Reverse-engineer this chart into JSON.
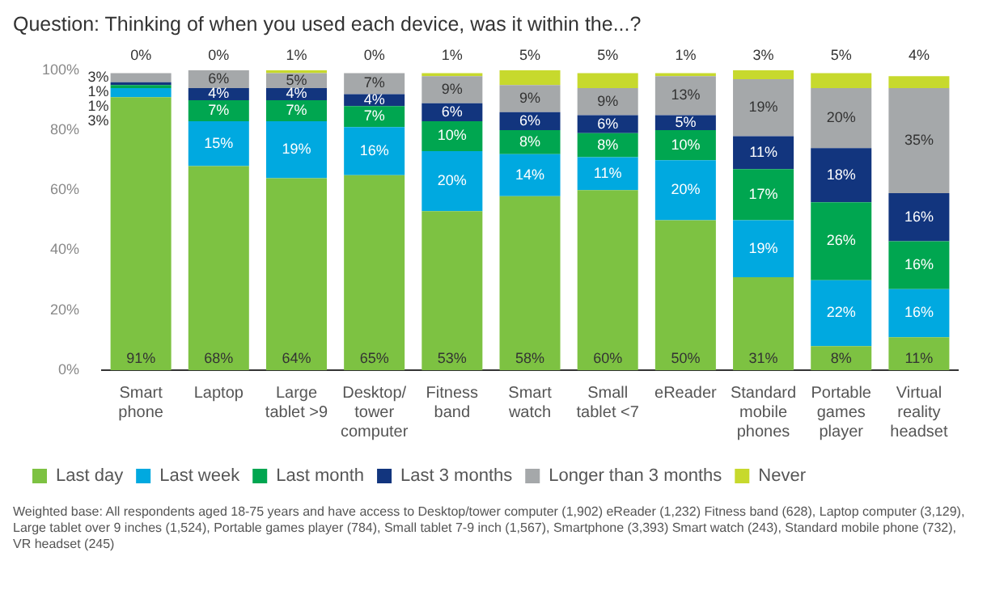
{
  "chart_data": {
    "type": "bar",
    "stacked": true,
    "title": "Question: Thinking of when you used each device, was it within the...?",
    "categories": [
      "Smart phone",
      "Laptop",
      "Large tablet >9",
      "Desktop/ tower computer",
      "Fitness band",
      "Smart watch",
      "Small tablet <7",
      "eReader",
      "Standard mobile phones",
      "Portable games player",
      "Virtual reality headset"
    ],
    "series": [
      {
        "name": "Last day",
        "color": "#7dc242",
        "values": [
          91,
          68,
          64,
          65,
          53,
          58,
          60,
          50,
          31,
          8,
          11
        ],
        "value_labels": [
          "91%",
          "68%",
          "64%",
          "65%",
          "53%",
          "58%",
          "60%",
          "50%",
          "31%",
          "8%",
          "11%"
        ]
      },
      {
        "name": "Last week",
        "color": "#00a9e0",
        "values": [
          3,
          15,
          19,
          16,
          20,
          14,
          11,
          20,
          19,
          22,
          16
        ],
        "value_labels": [
          "3%",
          "15%",
          "19%",
          "16%",
          "20%",
          "14%",
          "11%",
          "20%",
          "19%",
          "22%",
          "16%"
        ]
      },
      {
        "name": "Last month",
        "color": "#00a650",
        "values": [
          1,
          7,
          7,
          7,
          10,
          8,
          8,
          10,
          17,
          26,
          16
        ],
        "value_labels": [
          "1%",
          "7%",
          "7%",
          "7%",
          "10%",
          "8%",
          "8%",
          "10%",
          "17%",
          "26%",
          "16%"
        ]
      },
      {
        "name": "Last 3 months",
        "color": "#12357e",
        "values": [
          1,
          4,
          4,
          4,
          6,
          6,
          6,
          5,
          11,
          18,
          16
        ],
        "value_labels": [
          "1%",
          "4%",
          "4%",
          "4%",
          "6%",
          "6%",
          "6%",
          "5%",
          "11%",
          "18%",
          "16%"
        ]
      },
      {
        "name": "Longer than 3 months",
        "color": "#a5a8aa",
        "values": [
          3,
          6,
          5,
          7,
          9,
          9,
          9,
          13,
          19,
          20,
          35
        ],
        "value_labels": [
          "3%",
          "6%",
          "5%",
          "7%",
          "9%",
          "9%",
          "9%",
          "13%",
          "19%",
          "20%",
          "35%"
        ]
      },
      {
        "name": "Never",
        "color": "#c7d92d",
        "values": [
          0,
          0,
          1,
          0,
          1,
          5,
          5,
          1,
          3,
          5,
          4
        ],
        "value_labels": [
          "0%",
          "0%",
          "1%",
          "0%",
          "1%",
          "5%",
          "5%",
          "1%",
          "3%",
          "5%",
          "4%"
        ]
      }
    ],
    "ylim": [
      0,
      100
    ],
    "yticks": [
      {
        "value": 0,
        "label": "0%"
      },
      {
        "value": 20,
        "label": "20%"
      },
      {
        "value": 40,
        "label": "40%"
      },
      {
        "value": 60,
        "label": "60%"
      },
      {
        "value": 80,
        "label": "80%"
      },
      {
        "value": 100,
        "label": "100%"
      }
    ],
    "grid": false,
    "legend": "bottom left",
    "annotations": [
      "Weighted base: All respondents aged  18-75 years and have access to Desktop/tower computer (1,902) eReader (1,232) Fitness band (628), Laptop computer (3,129), Large tablet over 9 inches (1,524), Portable games player (784), Small tablet 7-9 inch (1,567), Smartphone (3,393) Smart watch (243), Standard mobile phone (732), VR headset (245)"
    ]
  }
}
